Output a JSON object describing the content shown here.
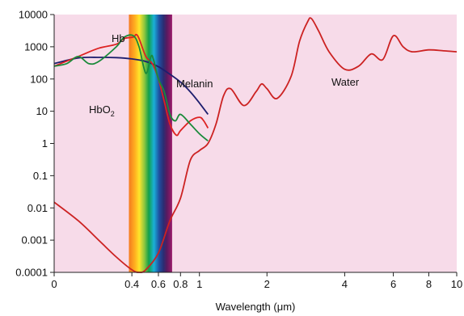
{
  "chart_data": {
    "type": "line",
    "title": "",
    "xlabel": "Wavelength (μm)",
    "ylabel": "",
    "yscale": "log",
    "xscale": "log (shifted)",
    "xlim": [
      0,
      10
    ],
    "ylim": [
      0.0001,
      10000
    ],
    "grid": false,
    "legend": "none",
    "background_color": "#f7dbe9",
    "x_ticks": [
      "0",
      "0.4",
      "0.6",
      "0.8",
      "1",
      "2",
      "4",
      "6",
      "8",
      "10"
    ],
    "y_ticks": [
      "10000",
      "1000",
      "100",
      "10",
      "1",
      "0.1",
      "0.01",
      "0.001",
      "0.0001"
    ],
    "visible_spectrum_band": [
      0.38,
      0.72
    ],
    "series": [
      {
        "label_text": "Water",
        "color": "#cc2222",
        "points": [
          [
            0,
            0.015
          ],
          [
            0.1,
            0.004
          ],
          [
            0.2,
            0.001
          ],
          [
            0.3,
            0.0003
          ],
          [
            0.4,
            0.00012
          ],
          [
            0.45,
            0.0001
          ],
          [
            0.5,
            0.00012
          ],
          [
            0.6,
            0.0004
          ],
          [
            0.7,
            0.004
          ],
          [
            0.8,
            0.02
          ],
          [
            0.9,
            0.3
          ],
          [
            1.0,
            0.6
          ],
          [
            1.1,
            1.0
          ],
          [
            1.2,
            4
          ],
          [
            1.3,
            30
          ],
          [
            1.4,
            50
          ],
          [
            1.6,
            15
          ],
          [
            1.8,
            40
          ],
          [
            1.9,
            70
          ],
          [
            2.0,
            50
          ],
          [
            2.2,
            25
          ],
          [
            2.5,
            120
          ],
          [
            2.7,
            1500
          ],
          [
            2.9,
            6000
          ],
          [
            3.0,
            7500
          ],
          [
            3.2,
            3000
          ],
          [
            3.5,
            700
          ],
          [
            4.0,
            200
          ],
          [
            4.5,
            250
          ],
          [
            5.0,
            600
          ],
          [
            5.5,
            400
          ],
          [
            6.0,
            2200
          ],
          [
            6.5,
            1000
          ],
          [
            7.0,
            700
          ],
          [
            8.0,
            800
          ],
          [
            9.0,
            750
          ],
          [
            10.0,
            700
          ]
        ]
      },
      {
        "label_text": "Melanin",
        "color": "#1e1e6e",
        "points": [
          [
            0,
            300
          ],
          [
            0.1,
            450
          ],
          [
            0.2,
            470
          ],
          [
            0.3,
            460
          ],
          [
            0.4,
            420
          ],
          [
            0.5,
            350
          ],
          [
            0.6,
            240
          ],
          [
            0.7,
            140
          ],
          [
            0.8,
            80
          ],
          [
            0.9,
            40
          ],
          [
            1.0,
            18
          ],
          [
            1.1,
            8
          ]
        ]
      },
      {
        "label_text": "Hb",
        "color": "#dd2222",
        "points": [
          [
            0,
            250
          ],
          [
            0.1,
            500
          ],
          [
            0.2,
            900
          ],
          [
            0.3,
            1200
          ],
          [
            0.35,
            1800
          ],
          [
            0.41,
            2000
          ],
          [
            0.43,
            2400
          ],
          [
            0.45,
            1800
          ],
          [
            0.5,
            500
          ],
          [
            0.55,
            300
          ],
          [
            0.6,
            100
          ],
          [
            0.65,
            20
          ],
          [
            0.7,
            4
          ],
          [
            0.76,
            1.8
          ],
          [
            0.8,
            2.5
          ],
          [
            0.9,
            5
          ],
          [
            1.0,
            6.5
          ],
          [
            1.05,
            5
          ],
          [
            1.1,
            3
          ]
        ]
      },
      {
        "label_text": "HbO",
        "label_subscript": "2",
        "color": "#1a8a3a",
        "points": [
          [
            0,
            250
          ],
          [
            0.05,
            300
          ],
          [
            0.1,
            500
          ],
          [
            0.15,
            300
          ],
          [
            0.2,
            350
          ],
          [
            0.3,
            1000
          ],
          [
            0.35,
            2000
          ],
          [
            0.41,
            2200
          ],
          [
            0.45,
            1000
          ],
          [
            0.5,
            150
          ],
          [
            0.54,
            500
          ],
          [
            0.56,
            400
          ],
          [
            0.6,
            100
          ],
          [
            0.65,
            40
          ],
          [
            0.7,
            8
          ],
          [
            0.75,
            5
          ],
          [
            0.8,
            8
          ],
          [
            0.9,
            4
          ],
          [
            1.0,
            2
          ],
          [
            1.1,
            1.2
          ]
        ]
      }
    ]
  }
}
